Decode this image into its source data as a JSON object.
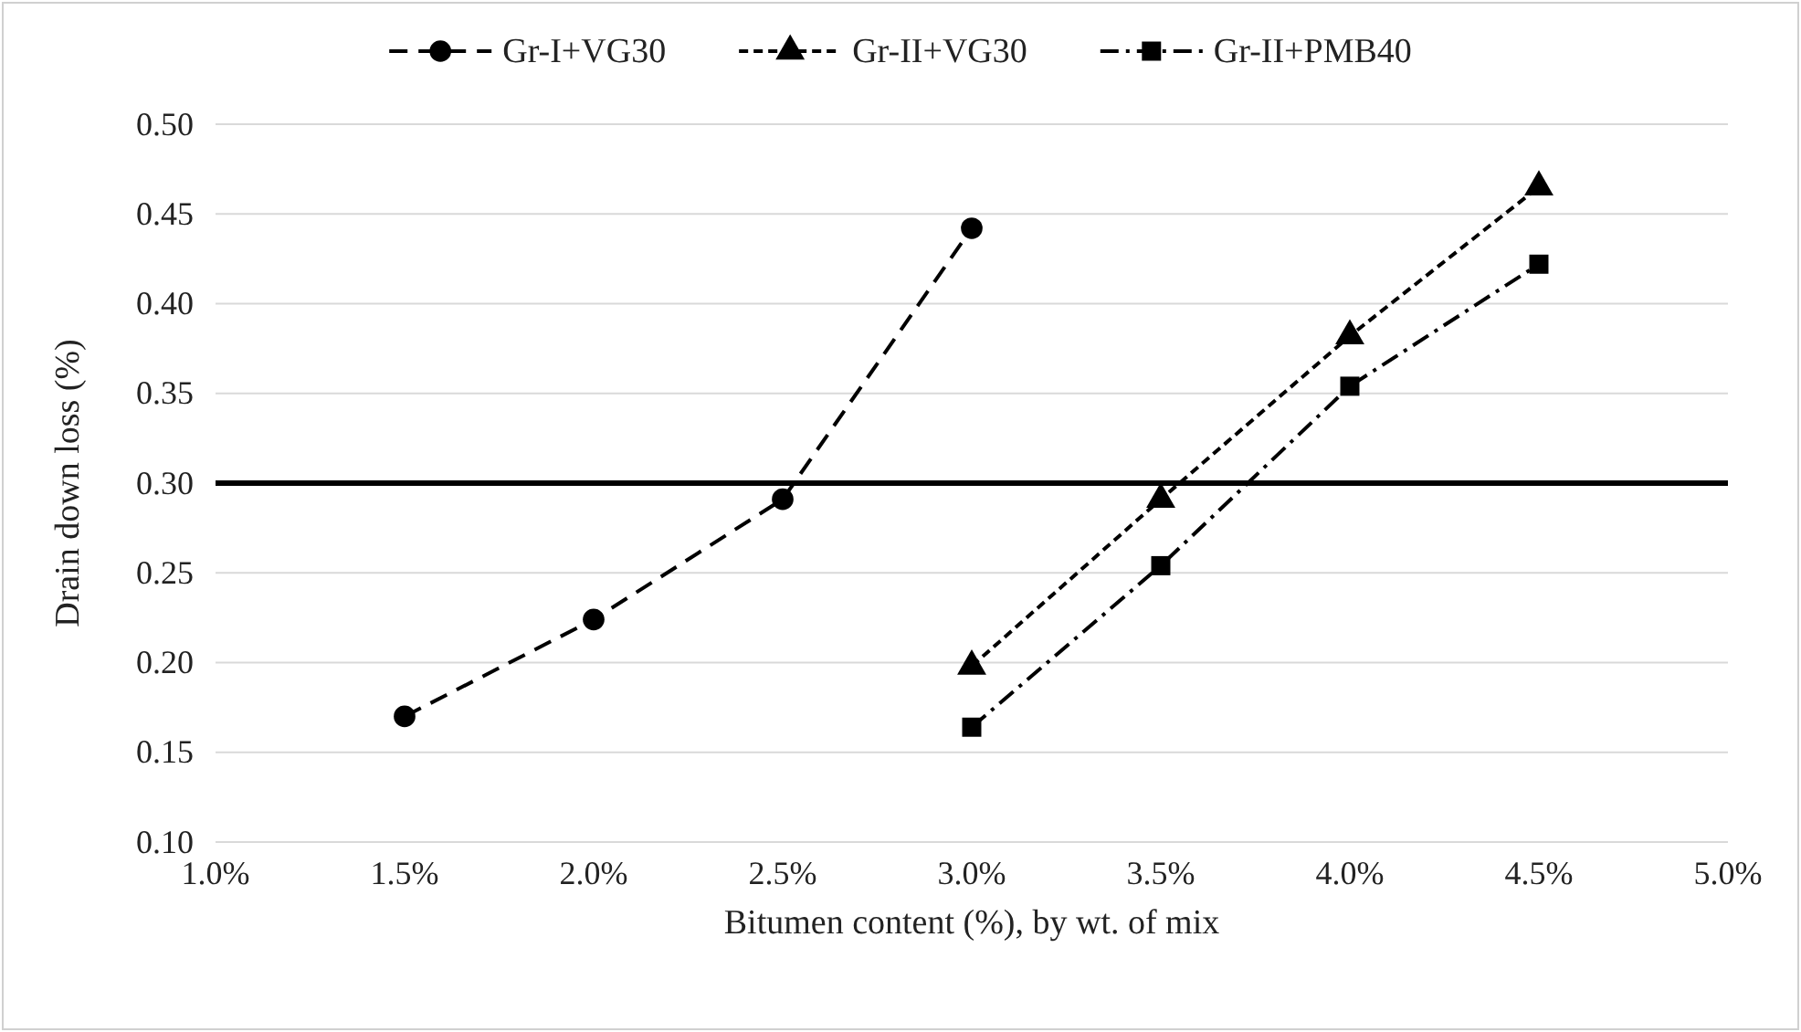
{
  "chart_data": {
    "type": "line",
    "xlabel": "Bitumen content (%), by wt. of mix",
    "ylabel": "Drain down loss (%)",
    "xlim": [
      1,
      5
    ],
    "xticks": [
      {
        "value": 1,
        "label": "1.0%"
      },
      {
        "value": 1.5,
        "label": "1.5%"
      },
      {
        "value": 2,
        "label": "2.0%"
      },
      {
        "value": 2.5,
        "label": "2.5%"
      },
      {
        "value": 3,
        "label": "3.0%"
      },
      {
        "value": 3.5,
        "label": "3.5%"
      },
      {
        "value": 4,
        "label": "4.0%"
      },
      {
        "value": 4.5,
        "label": "4.5%"
      },
      {
        "value": 5,
        "label": "5.0%"
      }
    ],
    "ylim": [
      0.1,
      0.5
    ],
    "yticks": [
      {
        "value": 0.1,
        "label": "0.10"
      },
      {
        "value": 0.15,
        "label": "0.15"
      },
      {
        "value": 0.2,
        "label": "0.20"
      },
      {
        "value": 0.25,
        "label": "0.25"
      },
      {
        "value": 0.3,
        "label": "0.30"
      },
      {
        "value": 0.35,
        "label": "0.35"
      },
      {
        "value": 0.4,
        "label": "0.40"
      },
      {
        "value": 0.45,
        "label": "0.45"
      },
      {
        "value": 0.5,
        "label": "0.50"
      }
    ],
    "grid": "y",
    "legend": "top",
    "ref_lines": [
      {
        "axis": "y",
        "value": 0.3,
        "color": "#000000",
        "line_style": "solid"
      }
    ],
    "series": [
      {
        "name": "Gr-I+VG30",
        "color": "#000000",
        "marker": "circle",
        "line_style": "dashed",
        "x": [
          1.5,
          2,
          2.5,
          3
        ],
        "values": [
          0.17,
          0.224,
          0.291,
          0.442
        ]
      },
      {
        "name": "Gr-II+VG30",
        "color": "#000000",
        "marker": "triangle",
        "line_style": "dotted",
        "x": [
          3,
          3.5,
          4,
          4.5
        ],
        "values": [
          0.198,
          0.291,
          0.382,
          0.465
        ]
      },
      {
        "name": "Gr-II+PMB40",
        "color": "#000000",
        "marker": "square",
        "line_style": "dashdot",
        "x": [
          3,
          3.5,
          4,
          4.5
        ],
        "values": [
          0.164,
          0.254,
          0.354,
          0.422
        ]
      }
    ]
  }
}
